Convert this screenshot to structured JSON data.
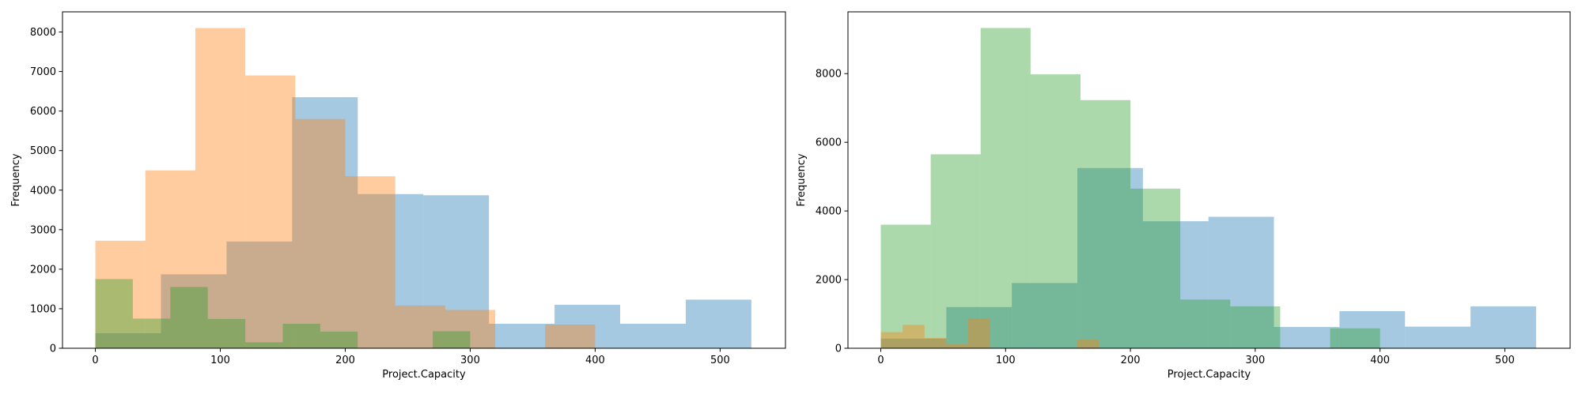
{
  "chart_data": [
    {
      "type": "histogram",
      "xlabel": "Project.Capacity",
      "ylabel": "Frequency",
      "xlim": [
        -26.3,
        552.3
      ],
      "ylim": [
        0,
        8510
      ],
      "xticks": [
        0,
        100,
        200,
        300,
        400,
        500
      ],
      "yticks": [
        0,
        1000,
        2000,
        3000,
        4000,
        5000,
        6000,
        7000,
        8000
      ],
      "opacity": 0.4,
      "series": [
        {
          "color": "#1f77b4",
          "bins": [
            0,
            52.5,
            105,
            157.5,
            210,
            262.5,
            315,
            367.5,
            420,
            472.5,
            525
          ],
          "values": [
            380,
            1870,
            2700,
            6350,
            3900,
            3870,
            620,
            1100,
            620,
            1230
          ]
        },
        {
          "color": "#ff7f0e",
          "bins": [
            0,
            40,
            80,
            120,
            160,
            200,
            240,
            280,
            320,
            360,
            400
          ],
          "values": [
            2720,
            4500,
            8100,
            6900,
            5800,
            4350,
            1080,
            970,
            0,
            600
          ]
        },
        {
          "color": "#2ca02c",
          "bins": [
            0,
            30,
            60,
            90,
            120,
            150,
            180,
            210,
            240,
            270,
            300
          ],
          "values": [
            1750,
            750,
            1550,
            740,
            150,
            620,
            420,
            0,
            0,
            430
          ]
        }
      ]
    },
    {
      "type": "histogram",
      "xlabel": "Project.Capacity",
      "ylabel": "Frequency",
      "xlim": [
        -26.3,
        552.3
      ],
      "ylim": [
        0,
        9800
      ],
      "xticks": [
        0,
        100,
        200,
        300,
        400,
        500
      ],
      "yticks": [
        0,
        2000,
        4000,
        6000,
        8000
      ],
      "opacity": 0.4,
      "series": [
        {
          "color": "#1f77b4",
          "bins": [
            0,
            52.5,
            105,
            157.5,
            210,
            262.5,
            315,
            367.5,
            420,
            472.5,
            525
          ],
          "values": [
            280,
            1200,
            1900,
            5250,
            3700,
            3830,
            620,
            1080,
            630,
            1220
          ]
        },
        {
          "color": "#2ca02c",
          "bins": [
            0,
            40,
            80,
            120,
            160,
            200,
            240,
            280,
            320,
            360,
            400
          ],
          "values": [
            3600,
            5650,
            9330,
            7980,
            7230,
            4650,
            1420,
            1220,
            0,
            580
          ]
        },
        {
          "color": "#ff7f0e",
          "bins": [
            0,
            17.5,
            35,
            52.5,
            70,
            87.5,
            105,
            122.5,
            140,
            157.5,
            175
          ],
          "values": [
            470,
            680,
            300,
            120,
            870,
            0,
            0,
            0,
            0,
            250
          ]
        }
      ]
    }
  ]
}
